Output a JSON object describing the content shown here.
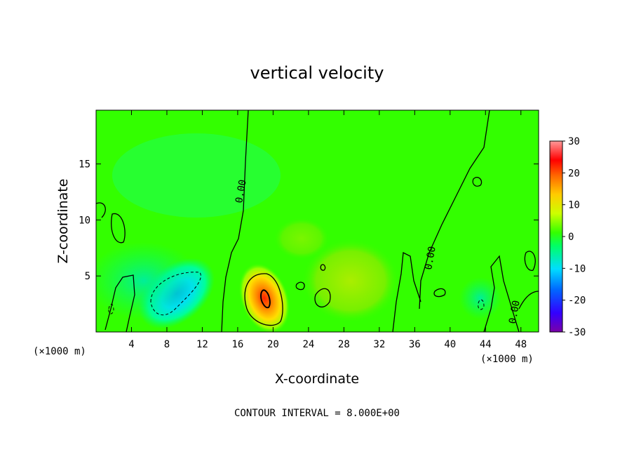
{
  "chart_data": {
    "type": "heatmap",
    "title": "vertical velocity",
    "xlabel": "X-coordinate",
    "ylabel": "Z-coordinate",
    "x_unit_label_left": "(×1000 m)",
    "x_unit_label_right": "(×1000 m)",
    "footer": "CONTOUR INTERVAL = 8.000E+00",
    "xlim": [
      0,
      50
    ],
    "ylim": [
      0,
      19.8
    ],
    "x_ticks": [
      4,
      8,
      12,
      16,
      20,
      24,
      28,
      32,
      36,
      40,
      44,
      48
    ],
    "y_ticks": [
      5,
      10,
      15
    ],
    "colorbar": {
      "range": [
        -30,
        30
      ],
      "ticks": [
        30,
        20,
        10,
        0,
        -10,
        -20,
        -30
      ],
      "colors": [
        "#7a00a8",
        "#3300ff",
        "#0066ff",
        "#00ddff",
        "#00ff66",
        "#33ff00",
        "#ccff00",
        "#ffcc00",
        "#ff6600",
        "#ff0000",
        "#ff9999"
      ]
    },
    "background_value": 0,
    "features": [
      {
        "name": "updraft core",
        "x": 19.0,
        "z": 3.2,
        "peak": 18
      },
      {
        "name": "downdraft region",
        "x": 9.5,
        "z": 3.5,
        "peak": -8
      },
      {
        "name": "weak ascent",
        "x": 28.5,
        "z": 4.0,
        "peak": 5
      },
      {
        "name": "weak descent",
        "x": 43.5,
        "z": 2.5,
        "peak": -5
      }
    ],
    "contour_labels": [
      "0.00",
      "0.00",
      "0.00"
    ]
  }
}
